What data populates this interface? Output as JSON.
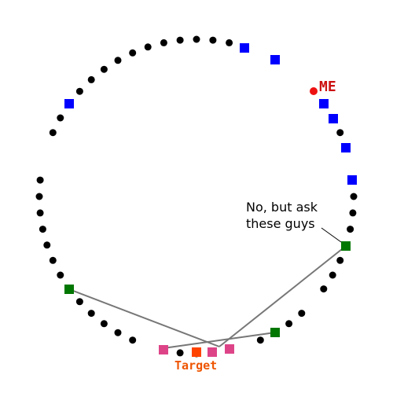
{
  "labels": {
    "me": "ME",
    "target": "Target",
    "annotation_line1": "No, but ask",
    "annotation_line2": "these guys"
  },
  "colors": {
    "dot": "#000000",
    "me": "#ee1111",
    "blue": "#0000ff",
    "green": "#007700",
    "pink": "#dd4488",
    "target": "#ff4400",
    "line": "#777777"
  }
}
